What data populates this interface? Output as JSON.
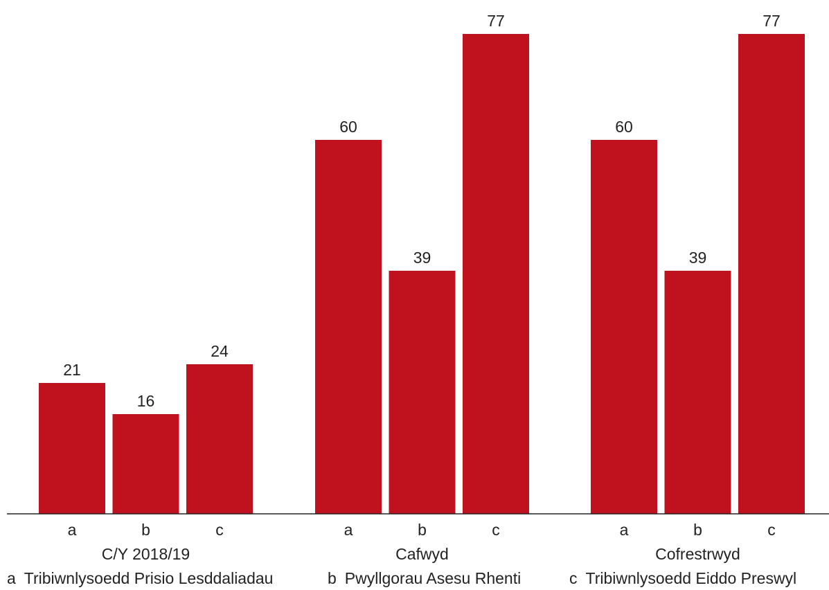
{
  "chart_data": {
    "type": "bar",
    "bar_color": "#c0111f",
    "groups": [
      {
        "label": "C/Y 2018/19",
        "categories": [
          "a",
          "b",
          "c"
        ],
        "values": [
          21,
          16,
          24
        ]
      },
      {
        "label": "Cafwyd",
        "categories": [
          "a",
          "b",
          "c"
        ],
        "values": [
          60,
          39,
          77
        ]
      },
      {
        "label": "Cofrestrwyd",
        "categories": [
          "a",
          "b",
          "c"
        ],
        "values": [
          60,
          39,
          77
        ]
      }
    ],
    "legend": [
      {
        "key": "a",
        "label": "Tribiwnlysoedd Prisio Lesddaliadau"
      },
      {
        "key": "b",
        "label": "Pwyllgorau Asesu Rhenti"
      },
      {
        "key": "c",
        "label": "Tribiwnlysoedd Eiddo Preswyl"
      }
    ],
    "ylim": [
      0,
      77
    ],
    "grid": false,
    "legend_position": "bottom"
  }
}
